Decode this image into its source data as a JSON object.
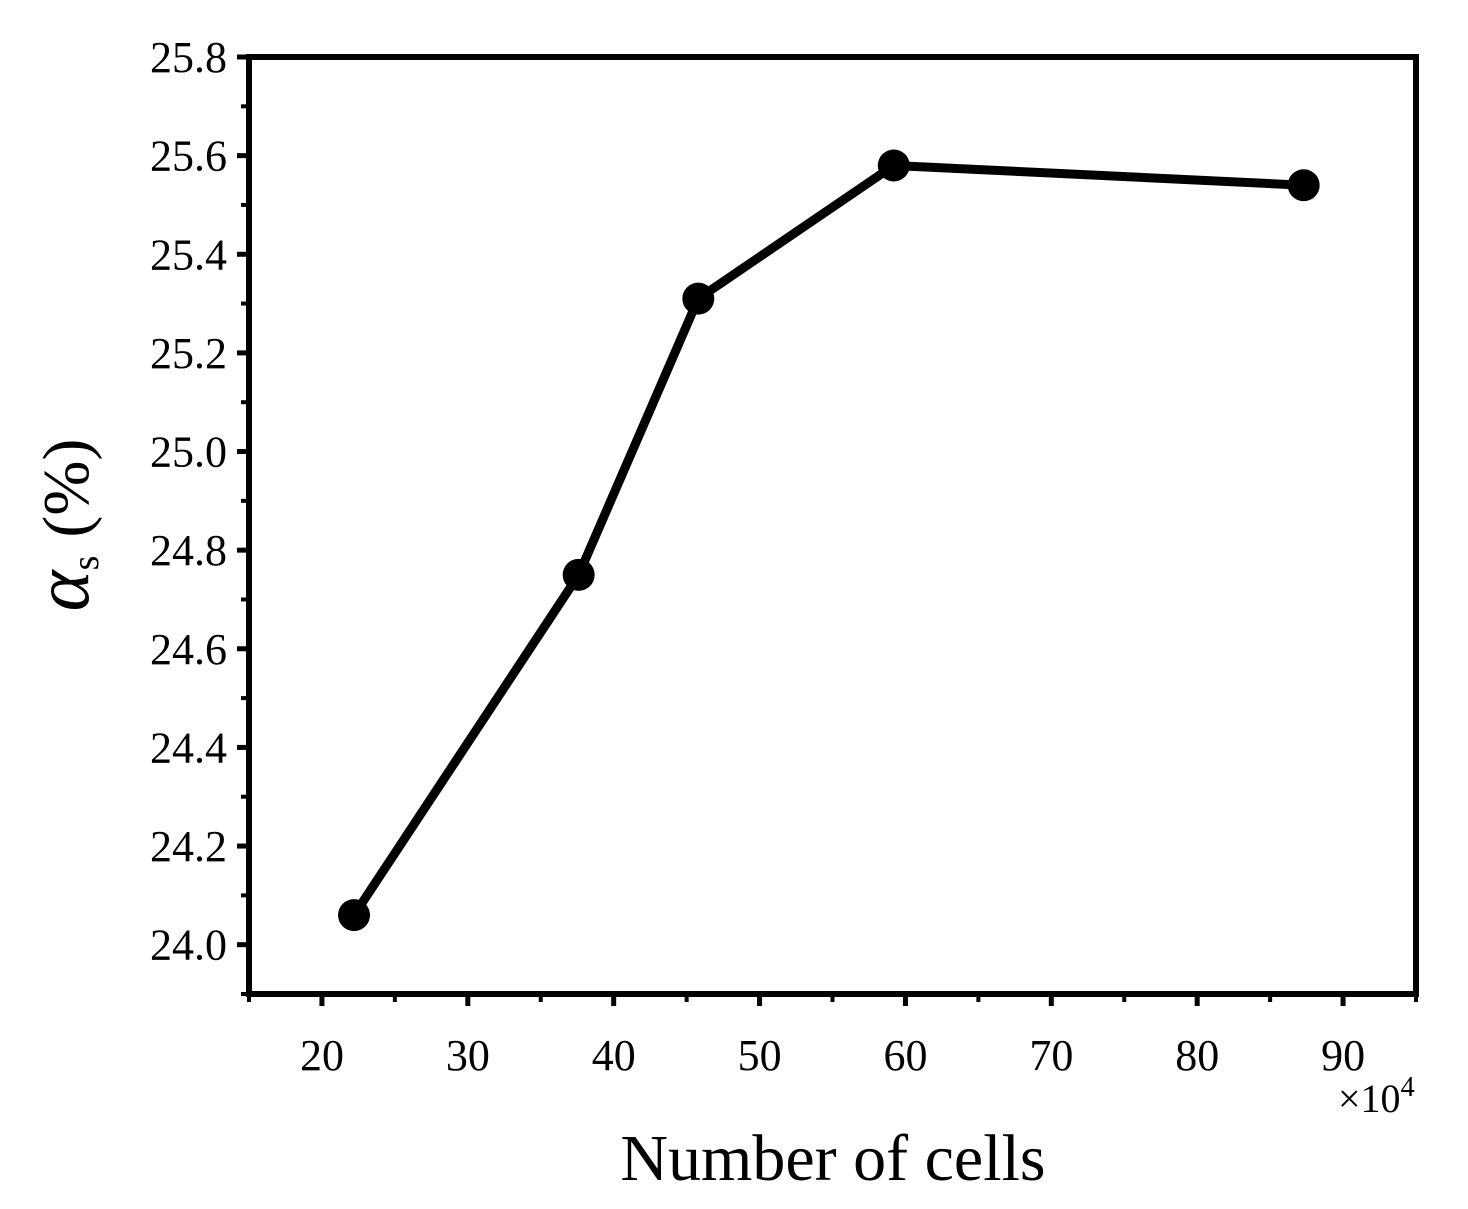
{
  "chart_data": {
    "type": "line",
    "title": "",
    "xlabel": "Number of cells",
    "x_multiplier": "×10",
    "x_multiplier_exp": "4",
    "ylabel_symbol": "α",
    "ylabel_sub": "s",
    "ylabel_unit": "(%)",
    "xlim": [
      15,
      95
    ],
    "ylim": [
      23.9,
      25.8
    ],
    "x_ticks": [
      20,
      30,
      40,
      50,
      60,
      70,
      80,
      90
    ],
    "x_tick_labels": [
      "20",
      "30",
      "40",
      "50",
      "60",
      "70",
      "80",
      "90"
    ],
    "y_ticks": [
      24.0,
      24.2,
      24.4,
      24.6,
      24.8,
      25.0,
      25.2,
      25.4,
      25.6,
      25.8
    ],
    "y_tick_labels": [
      "24.0",
      "24.2",
      "24.4",
      "24.6",
      "24.8",
      "25.0",
      "25.2",
      "25.4",
      "25.6",
      "25.8"
    ],
    "grid": false,
    "legend": "none",
    "series": [
      {
        "color": "#000000",
        "marker": "circle",
        "x": [
          22.2,
          37.6,
          45.8,
          59.2,
          87.3
        ],
        "y": [
          24.06,
          24.75,
          25.31,
          25.58,
          25.54
        ]
      }
    ]
  }
}
